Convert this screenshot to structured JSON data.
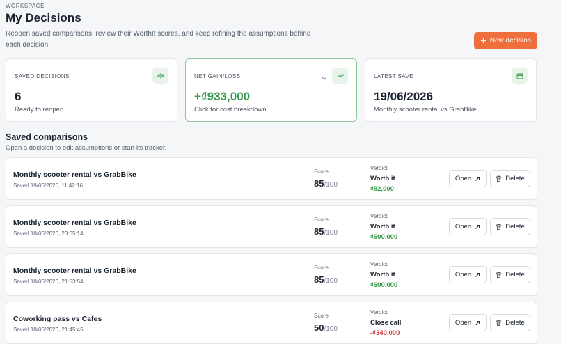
{
  "header": {
    "eyebrow": "WORKSPACE",
    "title": "My Decisions",
    "description": "Reopen saved comparisons, review their WorthIt scores, and keep refining the assumptions behind each decision.",
    "new_button": "New decision"
  },
  "stats": [
    {
      "label": "SAVED DECISIONS",
      "value": "6",
      "caption": "Ready to reopen"
    },
    {
      "label": "NET GAIN/LOSS",
      "value": "+₫933,000",
      "caption": "Click for cost breakdown"
    },
    {
      "label": "LATEST SAVE",
      "value": "19/06/2026",
      "caption": "Monthly scooter rental vs GrabBike"
    }
  ],
  "section": {
    "title": "Saved comparisons",
    "subtitle": "Open a decision to edit assumptions or start its tracker."
  },
  "labels": {
    "score": "Score",
    "score_max": "/100",
    "verdict": "Verdict",
    "open": "Open",
    "delete": "Delete"
  },
  "decisions": [
    {
      "title": "Monthly scooter rental vs GrabBike",
      "saved": "Saved 19/06/2026, 11:42:16",
      "score": "85",
      "verdict": "Worth it",
      "amount": "₫82,000"
    },
    {
      "title": "Monthly scooter rental vs GrabBike",
      "saved": "Saved 18/06/2026, 23:05:14",
      "score": "85",
      "verdict": "Worth it",
      "amount": "₫600,000"
    },
    {
      "title": "Monthly scooter rental vs GrabBike",
      "saved": "Saved 18/06/2026, 21:53:54",
      "score": "85",
      "verdict": "Worth it",
      "amount": "₫600,000"
    },
    {
      "title": "Coworking pass vs Cafes",
      "saved": "Saved 18/06/2026, 21:45:45",
      "score": "50",
      "verdict": "Close call",
      "amount": "-₫340,000"
    }
  ]
}
